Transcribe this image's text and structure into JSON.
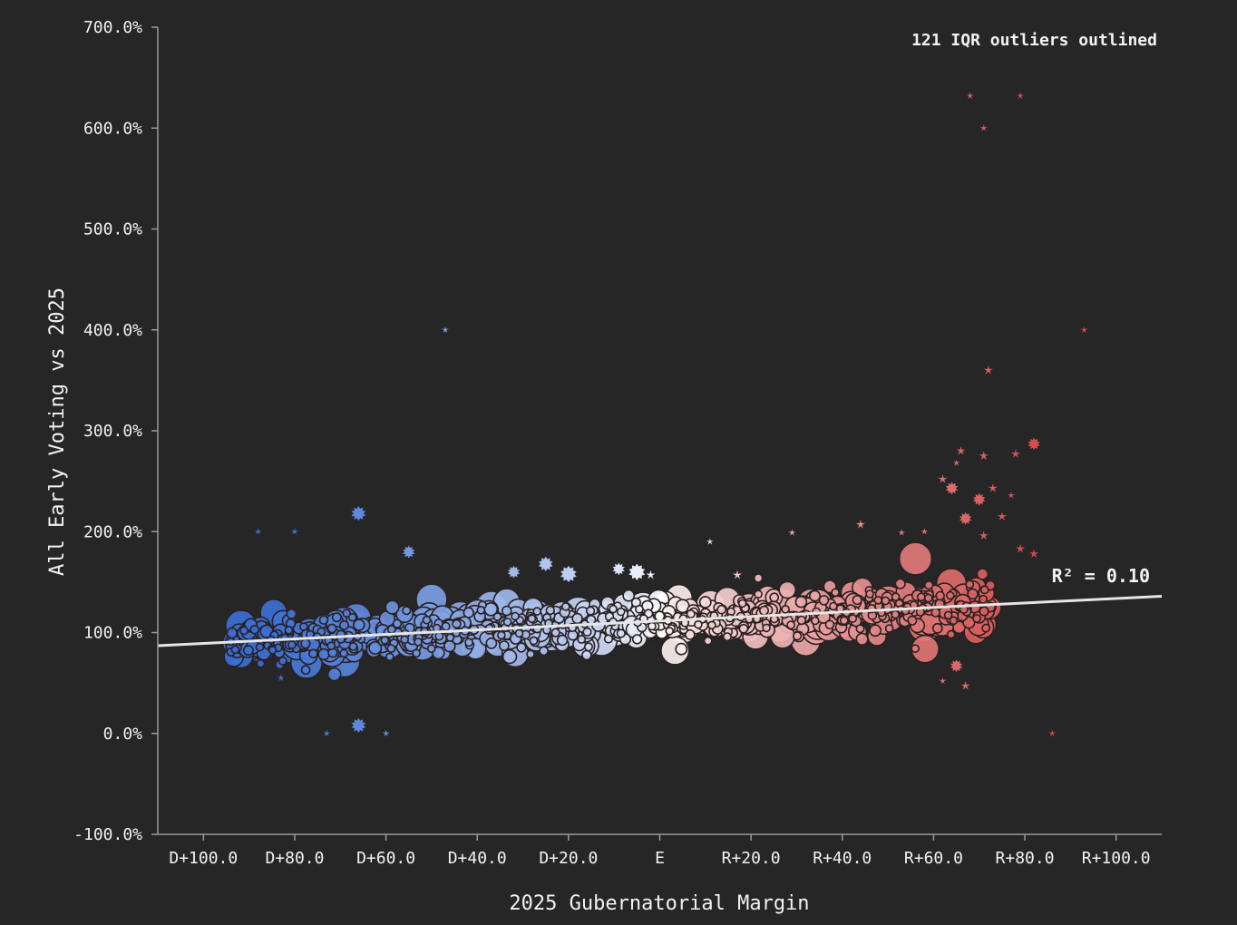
{
  "chart_data": {
    "type": "scatter",
    "title": "",
    "xlabel": "2025 Gubernatorial Margin",
    "ylabel": "All Early Voting vs 2025",
    "annotation": "121 IQR outliers outlined",
    "r_squared_label": "R² = 0.10",
    "xlim": [
      -110,
      110
    ],
    "ylim": [
      -100,
      700
    ],
    "x_ticks": [
      {
        "value": -100,
        "label": "D+100.0"
      },
      {
        "value": -80,
        "label": "D+80.0"
      },
      {
        "value": -60,
        "label": "D+60.0"
      },
      {
        "value": -40,
        "label": "D+40.0"
      },
      {
        "value": -20,
        "label": "D+20.0"
      },
      {
        "value": 0,
        "label": "E"
      },
      {
        "value": 20,
        "label": "R+20.0"
      },
      {
        "value": 40,
        "label": "R+40.0"
      },
      {
        "value": 60,
        "label": "R+60.0"
      },
      {
        "value": 80,
        "label": "R+80.0"
      },
      {
        "value": 100,
        "label": "R+100.0"
      }
    ],
    "y_ticks": [
      {
        "value": -100,
        "label": "-100.0%"
      },
      {
        "value": 0,
        "label": "0.0%"
      },
      {
        "value": 100,
        "label": "100.0%"
      },
      {
        "value": 200,
        "label": "200.0%"
      },
      {
        "value": 300,
        "label": "300.0%"
      },
      {
        "value": 400,
        "label": "400.0%"
      },
      {
        "value": 500,
        "label": "500.0%"
      },
      {
        "value": 600,
        "label": "600.0%"
      },
      {
        "value": 700,
        "label": "700.0%"
      }
    ],
    "trendline": {
      "x": [
        -110,
        110
      ],
      "y": [
        87,
        136
      ]
    },
    "color_scale": {
      "dem": "#3b6fd4",
      "mid": "#ffffff",
      "rep": "#d44848"
    },
    "grid": false,
    "point_cloud": {
      "x_range": [
        -94,
        73
      ],
      "y_center": "1.0 + trend",
      "y_spread": 25,
      "approx_count": 900
    },
    "points": [
      {
        "x": -88,
        "y": 200,
        "size": 4,
        "outlier": true
      },
      {
        "x": -80,
        "y": 200,
        "size": 4,
        "outlier": true
      },
      {
        "x": -66,
        "y": 218,
        "size": 7,
        "outlier": true
      },
      {
        "x": -47,
        "y": 400,
        "size": 4,
        "outlier": true
      },
      {
        "x": -55,
        "y": 180,
        "size": 6,
        "outlier": true
      },
      {
        "x": -32,
        "y": 160,
        "size": 6,
        "outlier": true
      },
      {
        "x": -25,
        "y": 168,
        "size": 7,
        "outlier": true
      },
      {
        "x": -20,
        "y": 158,
        "size": 8,
        "outlier": true
      },
      {
        "x": -9,
        "y": 163,
        "size": 6,
        "outlier": true
      },
      {
        "x": -5,
        "y": 160,
        "size": 8,
        "outlier": true
      },
      {
        "x": -2,
        "y": 157,
        "size": 5,
        "outlier": true
      },
      {
        "x": 11,
        "y": 190,
        "size": 4,
        "outlier": true
      },
      {
        "x": 17,
        "y": 157,
        "size": 5,
        "outlier": true
      },
      {
        "x": 29,
        "y": 199,
        "size": 4,
        "outlier": true
      },
      {
        "x": 44,
        "y": 207,
        "size": 5,
        "outlier": true
      },
      {
        "x": 53,
        "y": 199,
        "size": 4,
        "outlier": true
      },
      {
        "x": 58,
        "y": 200,
        "size": 4,
        "outlier": true
      },
      {
        "x": 62,
        "y": 252,
        "size": 5,
        "outlier": true
      },
      {
        "x": 64,
        "y": 243,
        "size": 6,
        "outlier": true
      },
      {
        "x": 66,
        "y": 280,
        "size": 5,
        "outlier": true
      },
      {
        "x": 65,
        "y": 268,
        "size": 4,
        "outlier": true
      },
      {
        "x": 68,
        "y": 632,
        "size": 4,
        "outlier": true
      },
      {
        "x": 71,
        "y": 600,
        "size": 4,
        "outlier": true
      },
      {
        "x": 79,
        "y": 632,
        "size": 4,
        "outlier": true
      },
      {
        "x": 72,
        "y": 360,
        "size": 5,
        "outlier": true
      },
      {
        "x": 71,
        "y": 275,
        "size": 5,
        "outlier": true
      },
      {
        "x": 78,
        "y": 277,
        "size": 5,
        "outlier": true
      },
      {
        "x": 82,
        "y": 287,
        "size": 6,
        "outlier": true
      },
      {
        "x": 73,
        "y": 243,
        "size": 5,
        "outlier": true
      },
      {
        "x": 77,
        "y": 236,
        "size": 4,
        "outlier": true
      },
      {
        "x": 75,
        "y": 215,
        "size": 5,
        "outlier": true
      },
      {
        "x": 70,
        "y": 232,
        "size": 6,
        "outlier": true
      },
      {
        "x": 67,
        "y": 213,
        "size": 6,
        "outlier": true
      },
      {
        "x": 71,
        "y": 196,
        "size": 5,
        "outlier": true
      },
      {
        "x": 79,
        "y": 183,
        "size": 5,
        "outlier": true
      },
      {
        "x": 82,
        "y": 178,
        "size": 5,
        "outlier": true
      },
      {
        "x": 93,
        "y": 400,
        "size": 4,
        "outlier": true
      },
      {
        "x": 86,
        "y": 0,
        "size": 4,
        "outlier": true
      },
      {
        "x": -83,
        "y": 55,
        "size": 4,
        "outlier": true
      },
      {
        "x": -73,
        "y": 0,
        "size": 4,
        "outlier": true
      },
      {
        "x": -66,
        "y": 8,
        "size": 7,
        "outlier": true
      },
      {
        "x": -60,
        "y": 0,
        "size": 4,
        "outlier": true
      },
      {
        "x": 62,
        "y": 52,
        "size": 4,
        "outlier": true
      },
      {
        "x": 67,
        "y": 47,
        "size": 5,
        "outlier": true
      },
      {
        "x": 65,
        "y": 67,
        "size": 6,
        "outlier": true
      }
    ]
  }
}
